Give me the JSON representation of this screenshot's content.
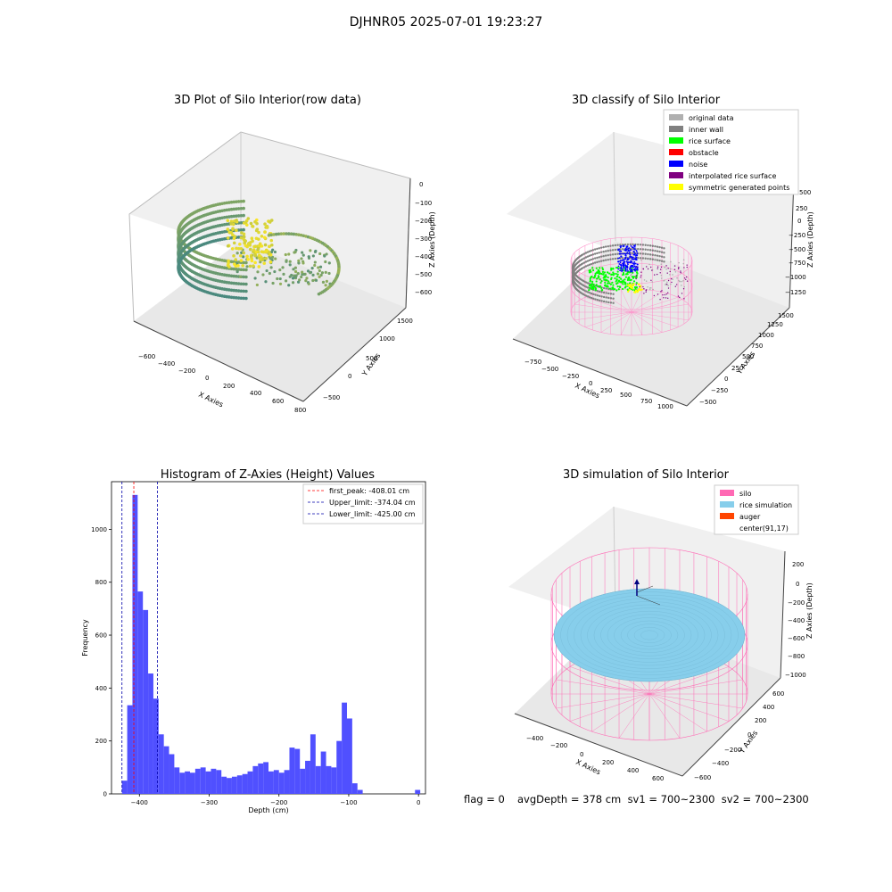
{
  "suptitle": "DJHNR05 2025-07-01 19:23:27",
  "footer": {
    "flag": "flag = 0",
    "stats": "avgDepth = 378 cm  sv1 = 700~2300  sv2 = 700~2300"
  },
  "colors": {
    "viridis_lo": "#2a788e",
    "viridis_hi": "#fde725",
    "inner_wall": "#808080",
    "rice_surface": "#00ff00",
    "noise": "#0000ff",
    "obstacle": "#ff0000",
    "interpolated": "#800080",
    "symmetric": "#ffff00",
    "silo": "#ff69b4",
    "rice_sim": "#87ceeb",
    "auger": "#ff4500",
    "hist_bar": "#5050ff",
    "first_peak": "#ff0000",
    "limits": "#0000aa"
  },
  "panels": {
    "raw": {
      "title": "3D Plot of Silo Interior(row data)",
      "xlabel": "X Axies",
      "ylabel": "Y Axies",
      "zlabel": "Z Axies (Depth)",
      "xticks": [
        "−600",
        "−400",
        "−200",
        "0",
        "200",
        "400",
        "600",
        "800"
      ],
      "yticks": [
        "−500",
        "0",
        "500",
        "1000",
        "1500"
      ],
      "zticks": [
        "0",
        "−100",
        "−200",
        "−300",
        "−400",
        "−500",
        "−600"
      ]
    },
    "classify": {
      "title": "3D classify of Silo Interior",
      "xlabel": "X Axies",
      "ylabel": "Y Axies",
      "zlabel": "Z Axies (Depth)",
      "xticks": [
        "−750",
        "−500",
        "−250",
        "0",
        "250",
        "500",
        "750",
        "1000"
      ],
      "yticks": [
        "−500",
        "−250",
        "0",
        "250",
        "500",
        "750",
        "1000",
        "1250",
        "1500"
      ],
      "zticks": [
        "500",
        "250",
        "0",
        "−250",
        "−500",
        "−750",
        "−1000",
        "−1250"
      ],
      "legend": [
        "original data",
        "inner wall",
        "rice surface",
        "obstacle",
        "noise",
        "interpolated rice surface",
        "symmetric generated points"
      ]
    },
    "simulation": {
      "title": "3D simulation of Silo Interior",
      "xlabel": "X Axies",
      "ylabel": "Y Axies",
      "zlabel": "Z Axies (Depth)",
      "xticks": [
        "−400",
        "−200",
        "0",
        "200",
        "400",
        "600"
      ],
      "yticks": [
        "−600",
        "−400",
        "−200",
        "0",
        "200",
        "400",
        "600"
      ],
      "zticks": [
        "200",
        "0",
        "−200",
        "−400",
        "−600",
        "−800",
        "−1000"
      ],
      "legend": [
        "silo",
        "rice simulation",
        "auger",
        "center(91,17)"
      ]
    }
  },
  "chart_data": {
    "type": "bar",
    "title": "Histogram of Z-Axies (Height) Values",
    "xlabel": "Depth (cm)",
    "ylabel": "Frequency",
    "xlim": [
      -440,
      10
    ],
    "ylim": [
      0,
      1180
    ],
    "xticks": [
      -400,
      -300,
      -200,
      -100,
      0
    ],
    "yticks": [
      0,
      200,
      400,
      600,
      800,
      1000
    ],
    "bin_width": 7.5,
    "bin_starts": [
      -425,
      -417.5,
      -410,
      -402.5,
      -395,
      -387.5,
      -380,
      -372.5,
      -365,
      -357.5,
      -350,
      -342.5,
      -335,
      -327.5,
      -320,
      -312.5,
      -305,
      -297.5,
      -290,
      -282.5,
      -275,
      -267.5,
      -260,
      -252.5,
      -245,
      -237.5,
      -230,
      -222.5,
      -215,
      -207.5,
      -200,
      -192.5,
      -185,
      -177.5,
      -170,
      -162.5,
      -155,
      -147.5,
      -140,
      -132.5,
      -125,
      -117.5,
      -110,
      -102.5,
      -95,
      -87.5,
      -80,
      -72.5,
      -65,
      -57.5,
      -50,
      -42.5,
      -35,
      -27.5,
      -20,
      -12.5,
      -5
    ],
    "values": [
      50,
      335,
      1130,
      765,
      695,
      455,
      360,
      225,
      180,
      150,
      100,
      80,
      85,
      80,
      95,
      100,
      85,
      95,
      90,
      65,
      60,
      65,
      70,
      75,
      85,
      105,
      115,
      120,
      85,
      90,
      80,
      90,
      175,
      170,
      95,
      125,
      225,
      105,
      160,
      105,
      100,
      200,
      345,
      285,
      40,
      15,
      0,
      0,
      0,
      0,
      0,
      0,
      0,
      0,
      0,
      0,
      15
    ],
    "lines": [
      {
        "label": "first_peak: -408.01 cm",
        "x": -408.01,
        "color": "#ff0000"
      },
      {
        "label": "Upper_limit: -374.04 cm",
        "x": -374.04,
        "color": "#0000aa"
      },
      {
        "label": "Lower_limit: -425.00 cm",
        "x": -425.0,
        "color": "#0000aa"
      }
    ],
    "legend_position": "top-right"
  }
}
